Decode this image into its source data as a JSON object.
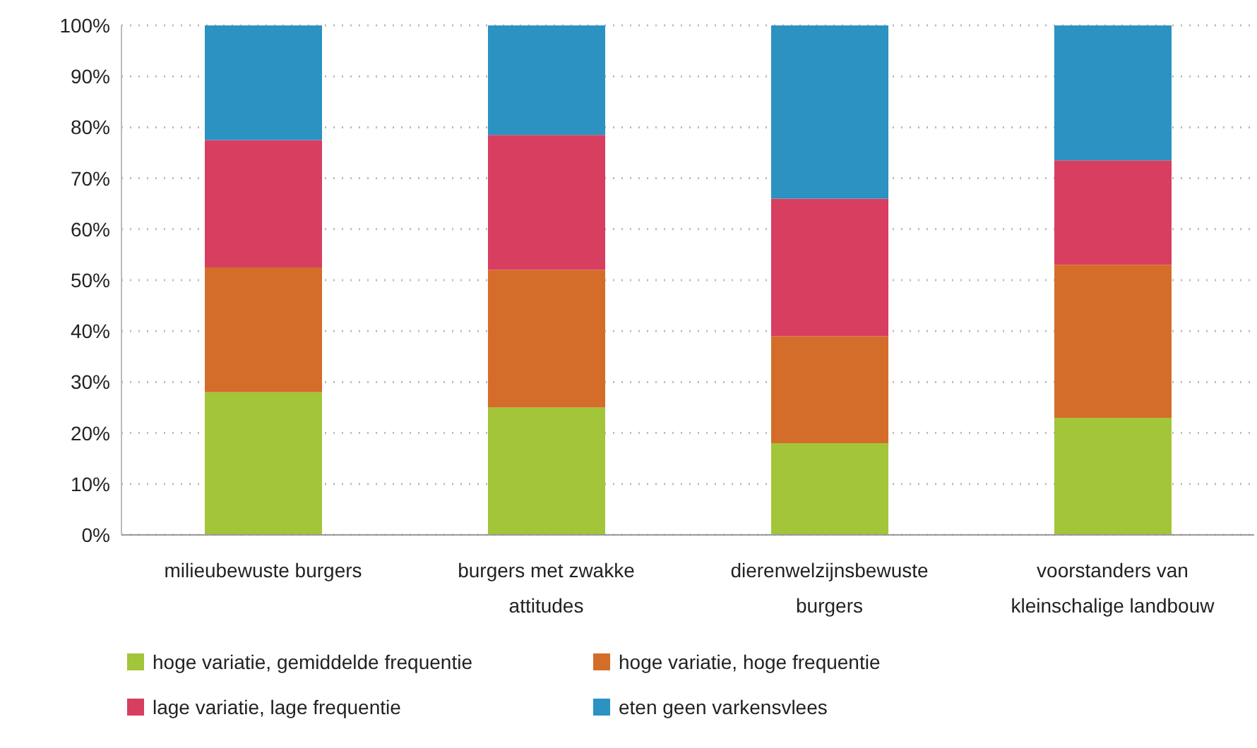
{
  "chart_data": {
    "type": "bar",
    "stacked": true,
    "categories": [
      "milieubewuste burgers",
      "burgers met zwakke attitudes",
      "dierenwelzijnsbewuste burgers",
      "voorstanders van kleinschalige landbouw"
    ],
    "series": [
      {
        "name": "hoge variatie, gemiddelde frequentie",
        "color": "#a2c53a",
        "values": [
          28,
          25,
          18,
          23
        ]
      },
      {
        "name": "hoge variatie, hoge frequentie",
        "color": "#d46d29",
        "values": [
          24.5,
          27,
          21,
          30
        ]
      },
      {
        "name": "lage variatie, lage frequentie",
        "color": "#d83e5f",
        "values": [
          25,
          26.5,
          27,
          20.5
        ]
      },
      {
        "name": "eten geen varkensvlees",
        "color": "#2b92c2",
        "values": [
          22.5,
          21.5,
          34,
          26.5
        ]
      }
    ],
    "ylim": [
      0,
      100
    ],
    "yticks": [
      {
        "value": 0,
        "label": "0%"
      },
      {
        "value": 10,
        "label": "10%"
      },
      {
        "value": 20,
        "label": "20%"
      },
      {
        "value": 30,
        "label": "30%"
      },
      {
        "value": 40,
        "label": "40%"
      },
      {
        "value": 50,
        "label": "50%"
      },
      {
        "value": 60,
        "label": "60%"
      },
      {
        "value": 70,
        "label": "70%"
      },
      {
        "value": 80,
        "label": "80%"
      },
      {
        "value": 90,
        "label": "90%"
      },
      {
        "value": 100,
        "label": "100%"
      }
    ],
    "grid": "y",
    "legend": "bottom"
  }
}
